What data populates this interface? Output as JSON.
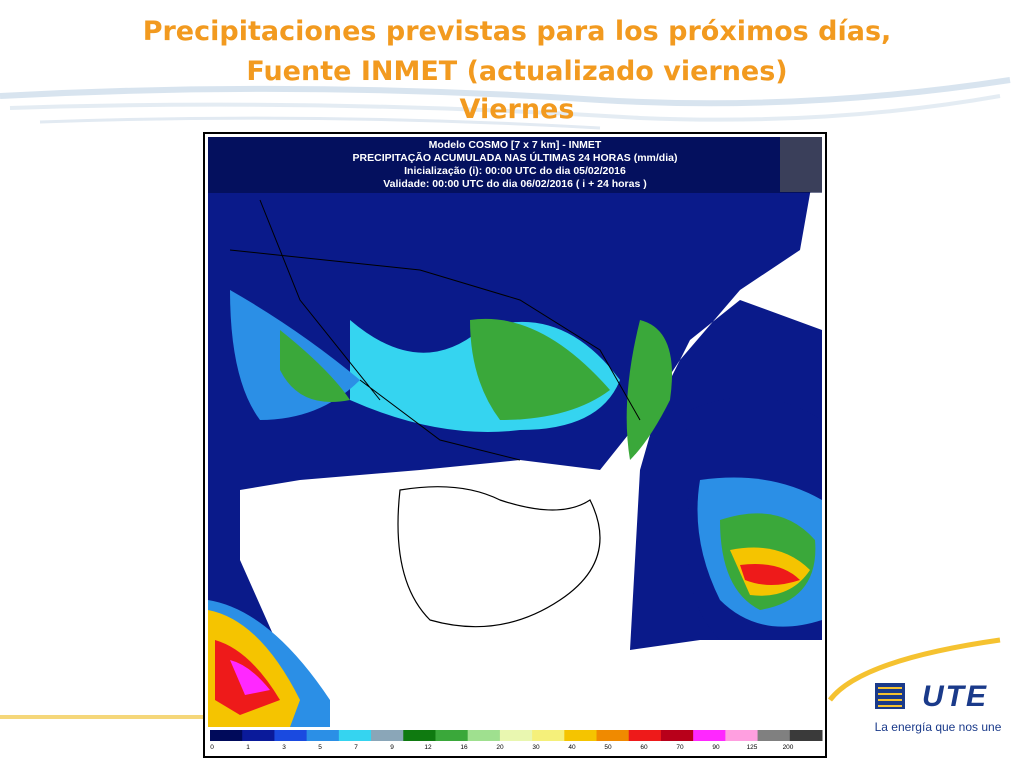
{
  "header": {
    "title_lines": [
      "Precipitaciones previstas para los próximos días,",
      "Fuente INMET (actualizado viernes)",
      "Viernes"
    ]
  },
  "map": {
    "header_lines": [
      "Modelo COSMO [7 x 7 km] - INMET",
      "PRECIPITAÇÃO ACUMULADA NAS ÚLTIMAS 24 HORAS (mm/dia)",
      "Inicialização (i): 00:00 UTC do dia 05/02/2016",
      "Validade: 00:00 UTC do dia 06/02/2016 ( i + 24 horas )"
    ],
    "legend": {
      "ticks": [
        "0",
        "1",
        "3",
        "5",
        "7",
        "9",
        "12",
        "16",
        "20",
        "30",
        "40",
        "50",
        "60",
        "70",
        "90",
        "125",
        "200"
      ],
      "colors": [
        "#000a5a",
        "#0a1a9a",
        "#1a4ae0",
        "#2b8fe6",
        "#35d4f0",
        "#8aa6b8",
        "#0f7a10",
        "#3aa83a",
        "#9fe08f",
        "#e9f7b0",
        "#f5f07a",
        "#f5c400",
        "#f08a00",
        "#ee1a1a",
        "#b8001a",
        "#ff28ff",
        "#ff9fe0",
        "#808080",
        "#3a3a3a"
      ]
    }
  },
  "logo": {
    "brand": "UTE",
    "tagline": "La energía que nos une"
  }
}
